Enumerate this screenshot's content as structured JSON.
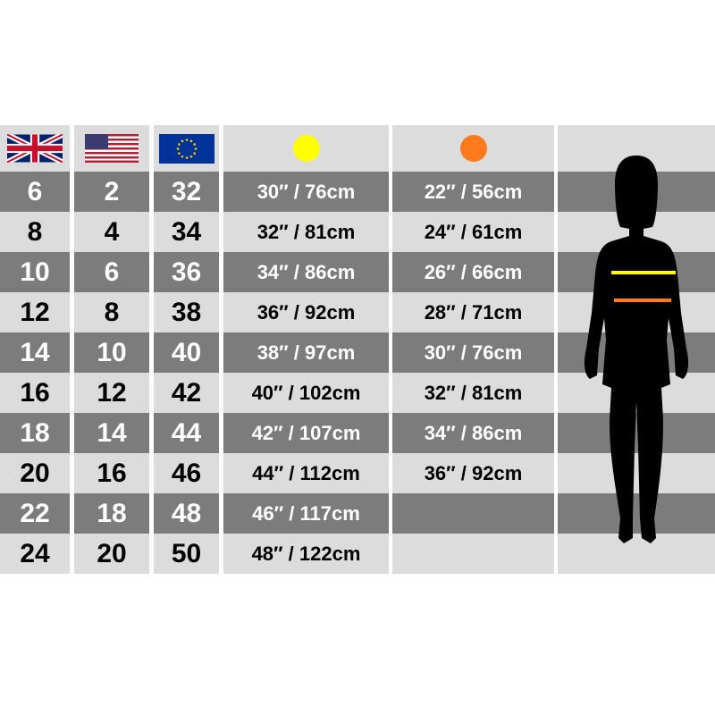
{
  "header": {
    "uk_flag_icon": "uk-flag",
    "us_flag_icon": "us-flag",
    "eu_flag_icon": "eu-flag",
    "bust_color": "#ffff00",
    "waist_color": "#ff7a1a"
  },
  "rows": [
    {
      "uk": "6",
      "us": "2",
      "eu": "32",
      "bust": "30″ / 76cm",
      "waist": "22″ / 56cm"
    },
    {
      "uk": "8",
      "us": "4",
      "eu": "34",
      "bust": "32″ / 81cm",
      "waist": "24″ / 61cm"
    },
    {
      "uk": "10",
      "us": "6",
      "eu": "36",
      "bust": "34″ / 86cm",
      "waist": "26″ / 66cm"
    },
    {
      "uk": "12",
      "us": "8",
      "eu": "38",
      "bust": "36″ / 92cm",
      "waist": "28″ / 71cm"
    },
    {
      "uk": "14",
      "us": "10",
      "eu": "40",
      "bust": "38″ / 97cm",
      "waist": "30″ / 76cm"
    },
    {
      "uk": "16",
      "us": "12",
      "eu": "42",
      "bust": "40″ / 102cm",
      "waist": "32″ / 81cm"
    },
    {
      "uk": "18",
      "us": "14",
      "eu": "44",
      "bust": "42″ / 107cm",
      "waist": "34″ / 86cm"
    },
    {
      "uk": "20",
      "us": "16",
      "eu": "46",
      "bust": "44″ / 112cm",
      "waist": "36″ / 92cm"
    },
    {
      "uk": "22",
      "us": "18",
      "eu": "48",
      "bust": "46″ / 117cm",
      "waist": ""
    },
    {
      "uk": "24",
      "us": "20",
      "eu": "50",
      "bust": "48″ / 122cm",
      "waist": ""
    }
  ],
  "figure": {
    "icon": "female-silhouette",
    "bust_line_color": "#ffff00",
    "waist_line_color": "#ff7a1a"
  }
}
